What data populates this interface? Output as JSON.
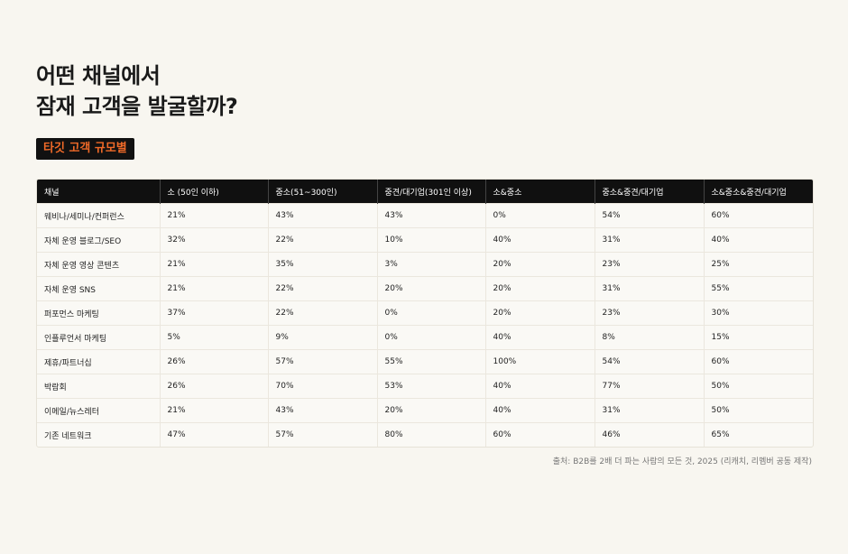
{
  "title": {
    "line1": "어떤 채널에서",
    "line2": "잠재 고객을 발굴할까?"
  },
  "badge": "타깃 고객 규모별",
  "table": {
    "headers": [
      "채널",
      "소 (50인 이하)",
      "중소(51~300인)",
      "중견/대기업(301인 이상)",
      "소&중소",
      "중소&중견/대기업",
      "소&중소&중견/대기업"
    ],
    "rows": [
      [
        "웨비나/세미나/컨퍼런스",
        "21%",
        "43%",
        "43%",
        "0%",
        "54%",
        "60%"
      ],
      [
        "자체 운영 블로그/SEO",
        "32%",
        "22%",
        "10%",
        "40%",
        "31%",
        "40%"
      ],
      [
        "자체 운영 영상 콘텐츠",
        "21%",
        "35%",
        "3%",
        "20%",
        "23%",
        "25%"
      ],
      [
        "자체 운영 SNS",
        "21%",
        "22%",
        "20%",
        "20%",
        "31%",
        "55%"
      ],
      [
        "퍼포먼스 마케팅",
        "37%",
        "22%",
        "0%",
        "20%",
        "23%",
        "30%"
      ],
      [
        "인플루언서 마케팅",
        "5%",
        "9%",
        "0%",
        "40%",
        "8%",
        "15%"
      ],
      [
        "제휴/파트너십",
        "26%",
        "57%",
        "55%",
        "100%",
        "54%",
        "60%"
      ],
      [
        "박람회",
        "26%",
        "70%",
        "53%",
        "40%",
        "77%",
        "50%"
      ],
      [
        "이메일/뉴스레터",
        "21%",
        "43%",
        "20%",
        "40%",
        "31%",
        "50%"
      ],
      [
        "기존 네트워크",
        "47%",
        "57%",
        "80%",
        "60%",
        "46%",
        "65%"
      ]
    ]
  },
  "source": "출처: B2B를 2배 더 파는 사람의 모든 것, 2025 (리캐치, 리멤버 공동 제작)"
}
